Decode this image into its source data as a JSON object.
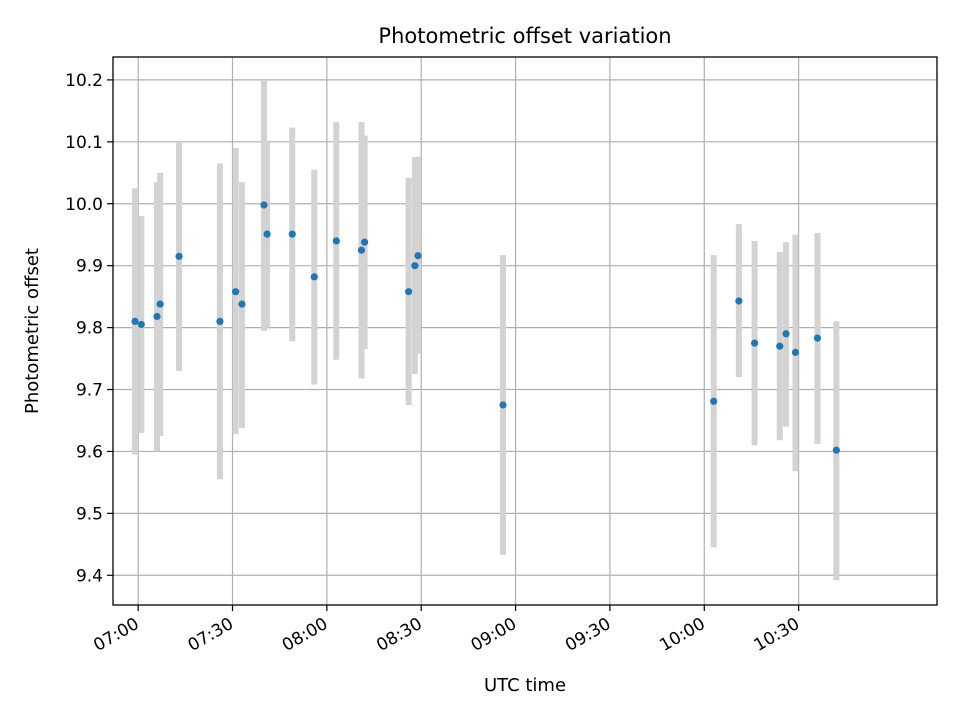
{
  "chart_data": {
    "type": "scatter",
    "title": "Photometric offset variation",
    "xlabel": "UTC time",
    "ylabel": "Photometric offset",
    "x_unit": "time of day (HH:MM)",
    "xlim": [
      "06:52",
      "11:14"
    ],
    "ylim": [
      9.352,
      10.237
    ],
    "x_ticks": [
      "07:00",
      "07:30",
      "08:00",
      "08:30",
      "09:00",
      "09:30",
      "10:00",
      "10:30"
    ],
    "y_ticks": [
      9.4,
      9.5,
      9.6,
      9.7,
      9.8,
      9.9,
      10.0,
      10.1,
      10.2
    ],
    "y_tick_labels": [
      "9.4",
      "9.5",
      "9.6",
      "9.7",
      "9.8",
      "9.9",
      "10.0",
      "10.1",
      "10.2"
    ],
    "grid": true,
    "point_color": "#1f77b4",
    "error_bar_color": "#d3d3d3",
    "series": [
      {
        "points": [
          {
            "x": "06:59",
            "y": 9.81,
            "ylow": 9.595,
            "yhigh": 10.025
          },
          {
            "x": "07:01",
            "y": 9.805,
            "ylow": 9.63,
            "yhigh": 9.98
          },
          {
            "x": "07:06",
            "y": 9.818,
            "ylow": 9.6,
            "yhigh": 10.035
          },
          {
            "x": "07:07",
            "y": 9.838,
            "ylow": 9.625,
            "yhigh": 10.05
          },
          {
            "x": "07:13",
            "y": 9.915,
            "ylow": 9.73,
            "yhigh": 10.1
          },
          {
            "x": "07:26",
            "y": 9.81,
            "ylow": 9.555,
            "yhigh": 10.065
          },
          {
            "x": "07:31",
            "y": 9.858,
            "ylow": 9.628,
            "yhigh": 10.09
          },
          {
            "x": "07:33",
            "y": 9.838,
            "ylow": 9.638,
            "yhigh": 10.035
          },
          {
            "x": "07:40",
            "y": 9.998,
            "ylow": 9.795,
            "yhigh": 10.2
          },
          {
            "x": "07:41",
            "y": 9.951,
            "ylow": 9.8,
            "yhigh": 10.1
          },
          {
            "x": "07:49",
            "y": 9.951,
            "ylow": 9.778,
            "yhigh": 10.123
          },
          {
            "x": "07:56",
            "y": 9.882,
            "ylow": 9.708,
            "yhigh": 10.055
          },
          {
            "x": "08:03",
            "y": 9.94,
            "ylow": 9.748,
            "yhigh": 10.132
          },
          {
            "x": "08:11",
            "y": 9.925,
            "ylow": 9.718,
            "yhigh": 10.132
          },
          {
            "x": "08:12",
            "y": 9.938,
            "ylow": 9.765,
            "yhigh": 10.11
          },
          {
            "x": "08:26",
            "y": 9.858,
            "ylow": 9.675,
            "yhigh": 10.042
          },
          {
            "x": "08:28",
            "y": 9.9,
            "ylow": 9.725,
            "yhigh": 10.075
          },
          {
            "x": "08:29",
            "y": 9.916,
            "ylow": 9.758,
            "yhigh": 10.076
          },
          {
            "x": "08:56",
            "y": 9.675,
            "ylow": 9.433,
            "yhigh": 9.917
          },
          {
            "x": "10:03",
            "y": 9.681,
            "ylow": 9.445,
            "yhigh": 9.917
          },
          {
            "x": "10:11",
            "y": 9.843,
            "ylow": 9.72,
            "yhigh": 9.967
          },
          {
            "x": "10:16",
            "y": 9.775,
            "ylow": 9.61,
            "yhigh": 9.94
          },
          {
            "x": "10:24",
            "y": 9.77,
            "ylow": 9.618,
            "yhigh": 9.922
          },
          {
            "x": "10:26",
            "y": 9.79,
            "ylow": 9.64,
            "yhigh": 9.938
          },
          {
            "x": "10:29",
            "y": 9.76,
            "ylow": 9.568,
            "yhigh": 9.95
          },
          {
            "x": "10:36",
            "y": 9.783,
            "ylow": 9.612,
            "yhigh": 9.953
          },
          {
            "x": "10:42",
            "y": 9.602,
            "ylow": 9.392,
            "yhigh": 9.81
          }
        ]
      }
    ]
  }
}
